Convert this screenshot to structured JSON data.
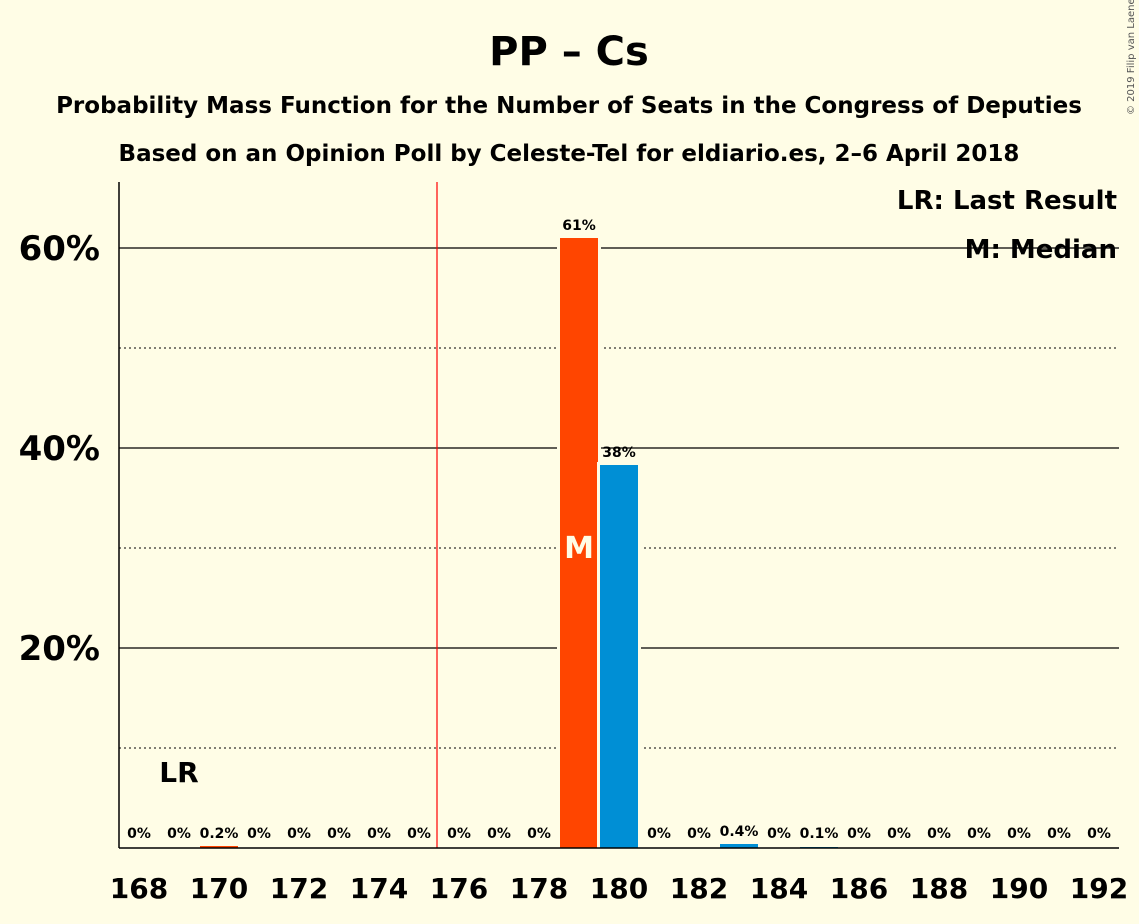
{
  "title": "PP – Cs",
  "subtitle1": "Probability Mass Function for the Number of Seats in the Congress of Deputies",
  "subtitle2": "Based on an Opinion Poll by Celeste-Tel for eldiario.es, 2–6 April 2018",
  "copyright": "© 2019 Filip van Laenen",
  "legend": {
    "last_result": "LR: Last Result",
    "median": "M: Median"
  },
  "lr_label": "LR",
  "median_label": "M",
  "colors": {
    "background": "#FFFDE6",
    "median_bar": "#FF4500",
    "other_bar": "#008FD5",
    "last_result_line": "#FF0000"
  },
  "chart_data": {
    "type": "bar",
    "xlabel": "",
    "ylabel": "",
    "ylim": [
      0,
      0.66
    ],
    "x_tick_labels": [
      "168",
      "170",
      "172",
      "174",
      "176",
      "178",
      "180",
      "182",
      "184",
      "186",
      "188",
      "190",
      "192"
    ],
    "y_tick_labels": [
      "20%",
      "40%",
      "60%"
    ],
    "y_major": [
      0.2,
      0.4,
      0.6
    ],
    "y_minor": [
      0.1,
      0.3,
      0.5
    ],
    "last_result_seats": 175.5,
    "lr_label_seat": 169,
    "median_seat": 179,
    "bars": [
      {
        "seat": 168,
        "value": 0.0,
        "label": "0%"
      },
      {
        "seat": 169,
        "value": 0.0,
        "label": "0%"
      },
      {
        "seat": 170,
        "value": 0.002,
        "label": "0.2%"
      },
      {
        "seat": 171,
        "value": 0.0,
        "label": "0%"
      },
      {
        "seat": 172,
        "value": 0.0,
        "label": "0%"
      },
      {
        "seat": 173,
        "value": 0.0,
        "label": "0%"
      },
      {
        "seat": 174,
        "value": 0.0,
        "label": "0%"
      },
      {
        "seat": 175,
        "value": 0.0,
        "label": "0%"
      },
      {
        "seat": 176,
        "value": 0.0,
        "label": "0%"
      },
      {
        "seat": 177,
        "value": 0.0,
        "label": "0%"
      },
      {
        "seat": 178,
        "value": 0.0,
        "label": "0%"
      },
      {
        "seat": 179,
        "value": 0.61,
        "label": "61%"
      },
      {
        "seat": 180,
        "value": 0.383,
        "label": "38%"
      },
      {
        "seat": 181,
        "value": 0.0,
        "label": "0%"
      },
      {
        "seat": 182,
        "value": 0.0,
        "label": "0%"
      },
      {
        "seat": 183,
        "value": 0.004,
        "label": "0.4%"
      },
      {
        "seat": 184,
        "value": 0.0,
        "label": "0%"
      },
      {
        "seat": 185,
        "value": 0.001,
        "label": "0.1%"
      },
      {
        "seat": 186,
        "value": 0.0,
        "label": "0%"
      },
      {
        "seat": 187,
        "value": 0.0,
        "label": "0%"
      },
      {
        "seat": 188,
        "value": 0.0,
        "label": "0%"
      },
      {
        "seat": 189,
        "value": 0.0,
        "label": "0%"
      },
      {
        "seat": 190,
        "value": 0.0,
        "label": "0%"
      },
      {
        "seat": 191,
        "value": 0.0,
        "label": "0%"
      },
      {
        "seat": 192,
        "value": 0.0,
        "label": "0%"
      }
    ]
  }
}
